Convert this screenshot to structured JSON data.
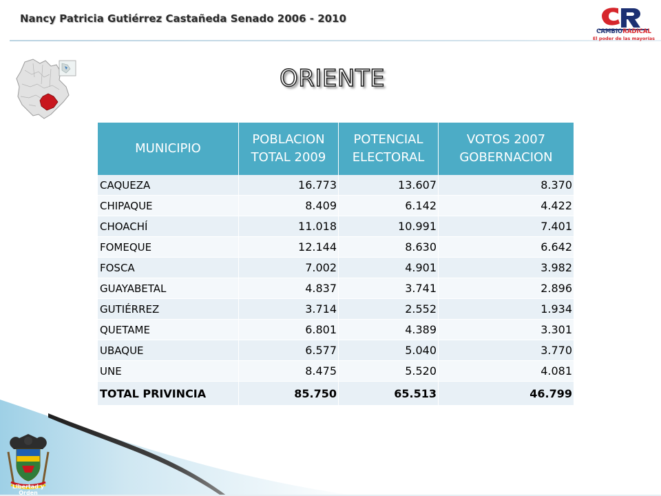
{
  "header": {
    "title": "Nancy Patricia Gutiérrez Castañeda Senado 2006 - 2010",
    "logo": {
      "text_part1": "CAMBIO",
      "text_part2": "RADICAL",
      "tagline": "El poder de las mayorías"
    }
  },
  "region_title": "ORIENTE",
  "table": {
    "headers": [
      "MUNICIPIO",
      "POBLACION TOTAL 2009",
      "POTENCIAL ELECTORAL",
      "VOTOS 2007 GOBERNACION"
    ],
    "rows": [
      [
        "CAQUEZA",
        "16.773",
        "13.607",
        "8.370"
      ],
      [
        "CHIPAQUE",
        "8.409",
        "6.142",
        "4.422"
      ],
      [
        "CHOACHÍ",
        "11.018",
        "10.991",
        "7.401"
      ],
      [
        "FOMEQUE",
        "12.144",
        "8.630",
        "6.642"
      ],
      [
        "FOSCA",
        "7.002",
        "4.901",
        "3.982"
      ],
      [
        "GUAYABETAL",
        "4.837",
        "3.741",
        "2.896"
      ],
      [
        "GUTIÉRREZ",
        "3.714",
        "2.552",
        "1.934"
      ],
      [
        "QUETAME",
        "6.801",
        "4.389",
        "3.301"
      ],
      [
        "UBAQUE",
        "6.577",
        "5.040",
        "3.770"
      ],
      [
        "UNE",
        "8.475",
        "5.520",
        "4.081"
      ]
    ],
    "total": [
      "TOTAL PRIVINCIA",
      "85.750",
      "65.513",
      "46.799"
    ]
  },
  "footer": {
    "coat_label": "Libertad y Orden"
  },
  "colors": {
    "header_bg": "#4cacc6",
    "row_odd": "#e8f0f6",
    "row_even": "#f4f8fb",
    "logo_red": "#d6262c",
    "logo_blue": "#1b2f72"
  }
}
